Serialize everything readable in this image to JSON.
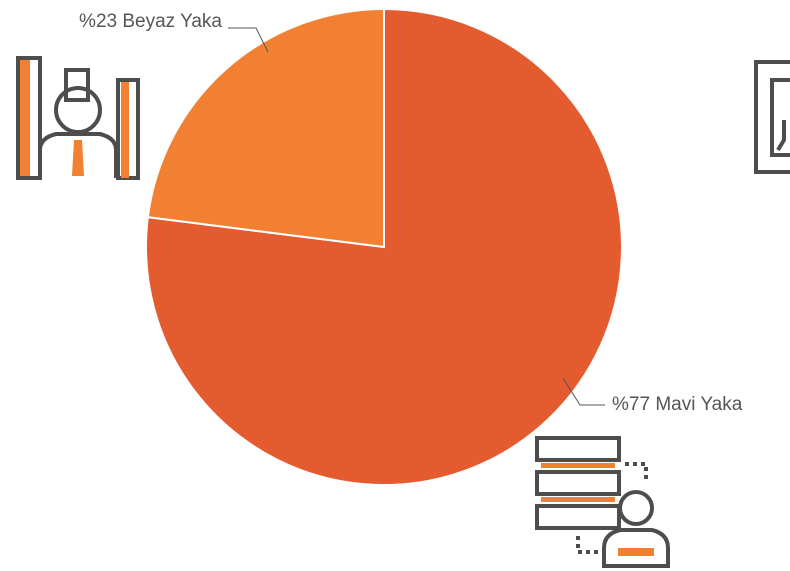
{
  "chart_data": {
    "type": "pie",
    "categories": [
      "Mavi Yaka",
      "Beyaz Yaka"
    ],
    "values": [
      77,
      23
    ],
    "value_labels": [
      "%77",
      "%23"
    ],
    "colors": [
      "#e35b2e",
      "#f28033"
    ]
  }
}
